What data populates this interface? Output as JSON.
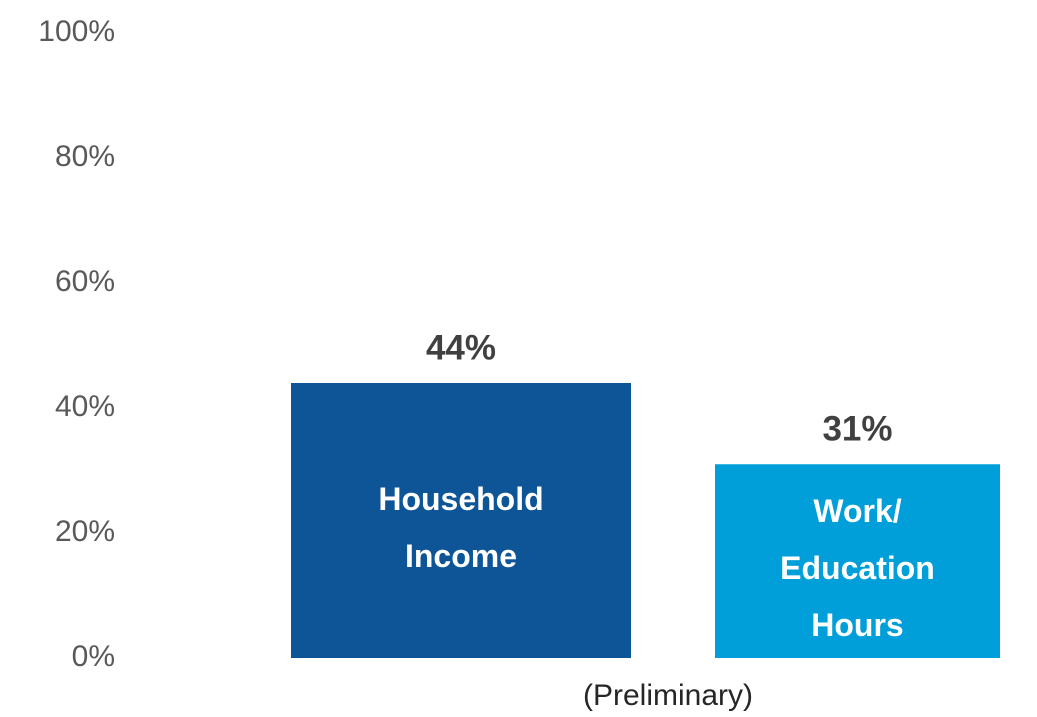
{
  "chart_data": {
    "type": "bar",
    "categories": [
      "Household Income",
      "Work/ Education Hours"
    ],
    "values": [
      44,
      31
    ],
    "value_labels": [
      "44%",
      "31%"
    ],
    "colors": [
      "#0d5597",
      "#009fda"
    ],
    "xlabel": "(Preliminary)",
    "ylim": [
      0,
      100
    ],
    "yticks": [
      {
        "value": 0,
        "label": "0%"
      },
      {
        "value": 20,
        "label": "20%"
      },
      {
        "value": 40,
        "label": "40%"
      },
      {
        "value": 60,
        "label": "60%"
      },
      {
        "value": 80,
        "label": "80%"
      },
      {
        "value": 100,
        "label": "100%"
      }
    ]
  }
}
